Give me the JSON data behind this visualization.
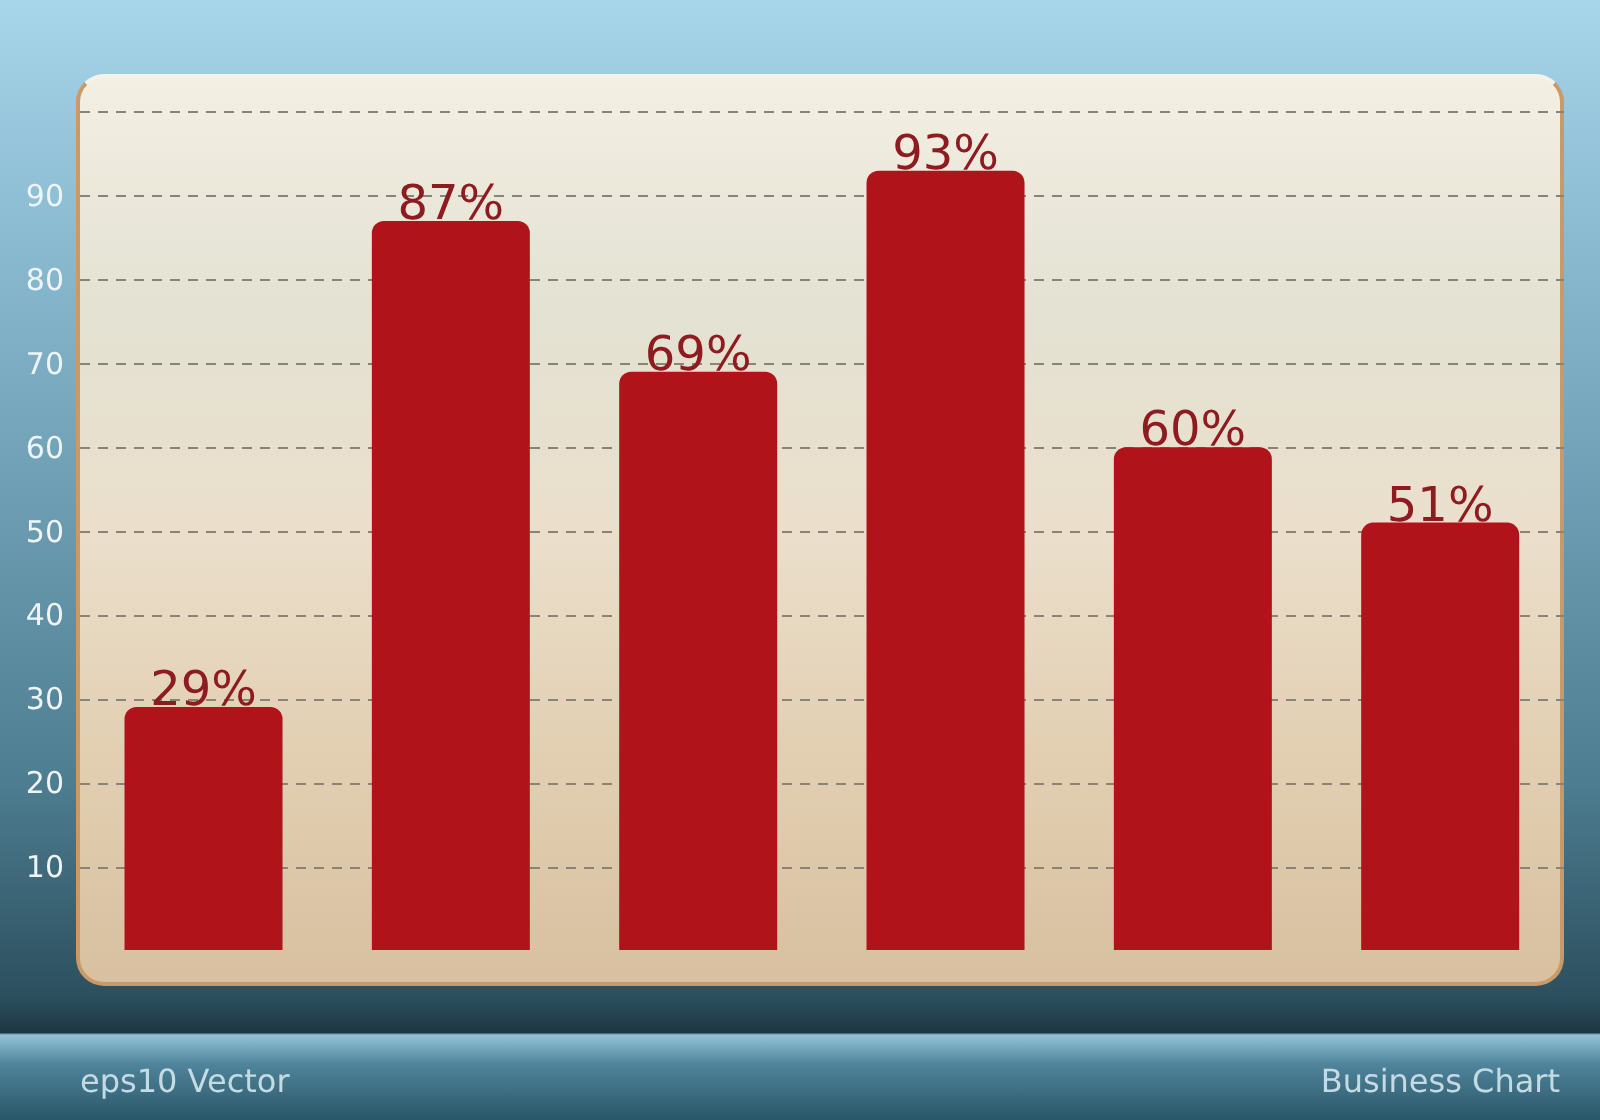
{
  "chart_data": {
    "type": "bar",
    "categories": [
      null,
      null,
      null,
      null,
      null,
      null
    ],
    "values": [
      29,
      87,
      69,
      93,
      60,
      51
    ],
    "value_labels": [
      "29%",
      "87%",
      "69%",
      "93%",
      "60%",
      "51%"
    ],
    "color": "#b01319",
    "ylim": [
      0,
      100
    ],
    "yticks": [
      10,
      20,
      30,
      40,
      50,
      60,
      70,
      80,
      90,
      {
        "value": 100,
        "label": null
      }
    ],
    "grid": "y",
    "annotations": [
      "eps10 Vector",
      "Business Chart"
    ]
  }
}
